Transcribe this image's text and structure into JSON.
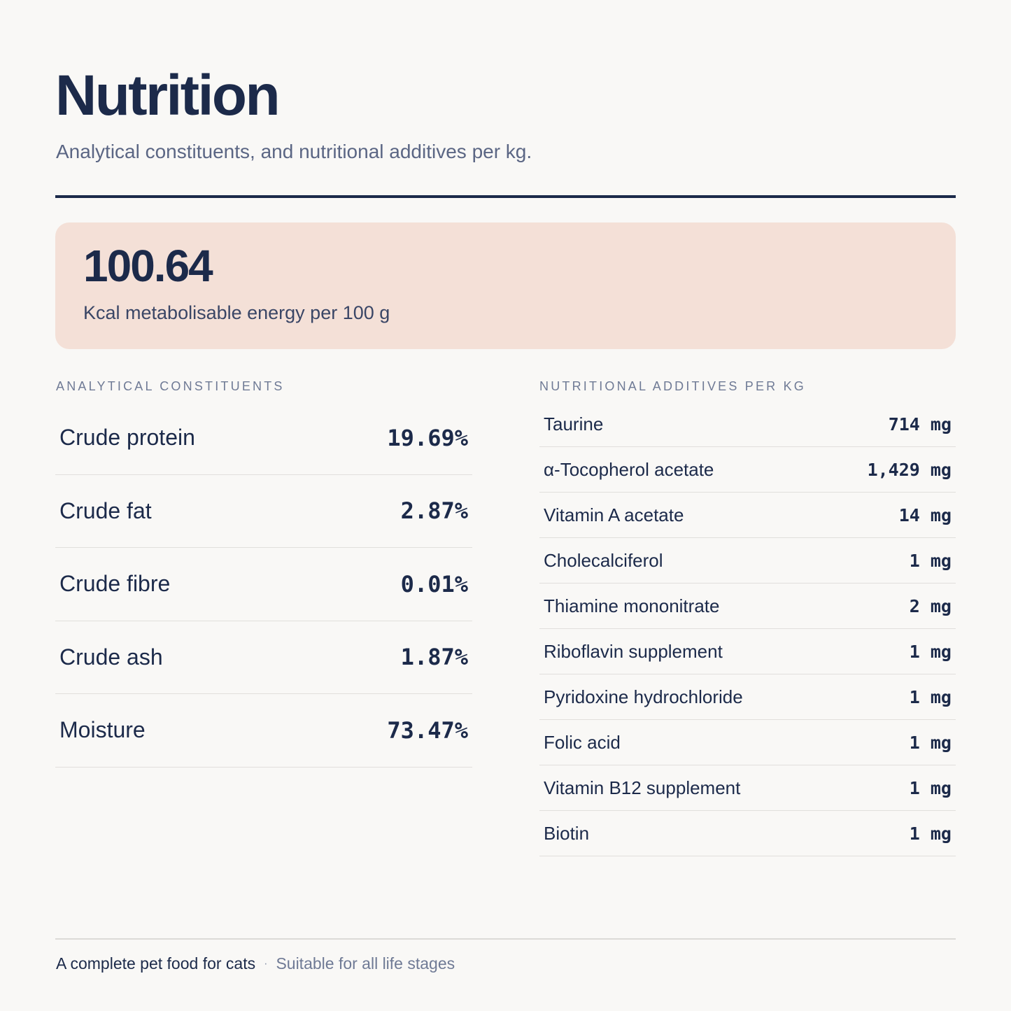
{
  "header": {
    "title": "Nutrition",
    "subtitle": "Analytical constituents, and nutritional additives per kg."
  },
  "energy": {
    "value": "100.64",
    "label": "Kcal metabolisable energy per 100 g"
  },
  "analytical": {
    "heading": "ANALYTICAL CONSTITUENTS",
    "rows": [
      {
        "name": "Crude protein",
        "value": "19.69%"
      },
      {
        "name": "Crude fat",
        "value": "2.87%"
      },
      {
        "name": "Crude fibre",
        "value": "0.01%"
      },
      {
        "name": "Crude ash",
        "value": "1.87%"
      },
      {
        "name": "Moisture",
        "value": "73.47%"
      }
    ]
  },
  "additives": {
    "heading": "NUTRITIONAL ADDITIVES PER KG",
    "rows": [
      {
        "name": "Taurine",
        "value": "714 mg"
      },
      {
        "name": "α-Tocopherol acetate",
        "value": "1,429 mg"
      },
      {
        "name": "Vitamin A acetate",
        "value": "14 mg"
      },
      {
        "name": "Cholecalciferol",
        "value": "1 mg"
      },
      {
        "name": "Thiamine mononitrate",
        "value": "2 mg"
      },
      {
        "name": "Riboflavin supplement",
        "value": "1 mg"
      },
      {
        "name": "Pyridoxine hydrochloride",
        "value": "1 mg"
      },
      {
        "name": "Folic acid",
        "value": "1 mg"
      },
      {
        "name": "Vitamin B12 supplement",
        "value": "1 mg"
      },
      {
        "name": "Biotin",
        "value": "1 mg"
      }
    ]
  },
  "footer": {
    "primary": "A complete pet food for cats",
    "separator": "·",
    "secondary": "Suitable for all life stages"
  },
  "colors": {
    "ink": "#1c2a4a",
    "muted": "#6f7a95",
    "card": "#f4e0d7",
    "background": "#f9f8f6"
  }
}
